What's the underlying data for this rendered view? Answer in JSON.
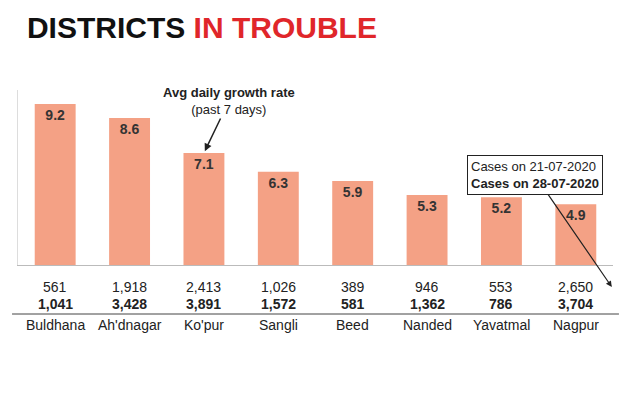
{
  "chart_data": {
    "type": "bar",
    "title": "DISTRICTS IN TROUBLE",
    "categories": [
      "Buldhana",
      "Ah'dnagar",
      "Ko'pur",
      "Sangli",
      "Beed",
      "Nanded",
      "Yavatmal",
      "Nagpur"
    ],
    "values": [
      9.2,
      8.6,
      7.1,
      6.3,
      5.9,
      5.3,
      5.2,
      4.9
    ],
    "color": "#f4a185",
    "data_labels": true,
    "tick_labels": false,
    "ylim": [
      2.3,
      9.8
    ],
    "annotation": {
      "text": "Avg daily growth rate",
      "subtext": "(past 7 days)"
    },
    "case_rows": [
      {
        "name": "Cases on 21-07-2020",
        "values": [
          561,
          1918,
          2413,
          1026,
          389,
          946,
          553,
          2650
        ],
        "value_labels": [
          "561",
          "1,918",
          "2,413",
          "1,026",
          "389",
          "946",
          "553",
          "2,650"
        ]
      },
      {
        "name": "Cases on 28-07-2020",
        "values": [
          1041,
          3428,
          3891,
          1572,
          581,
          1362,
          786,
          3704
        ],
        "value_labels": [
          "1,041",
          "3,428",
          "3,891",
          "1,572",
          "581",
          "1,362",
          "786",
          "3,704"
        ]
      }
    ]
  }
}
